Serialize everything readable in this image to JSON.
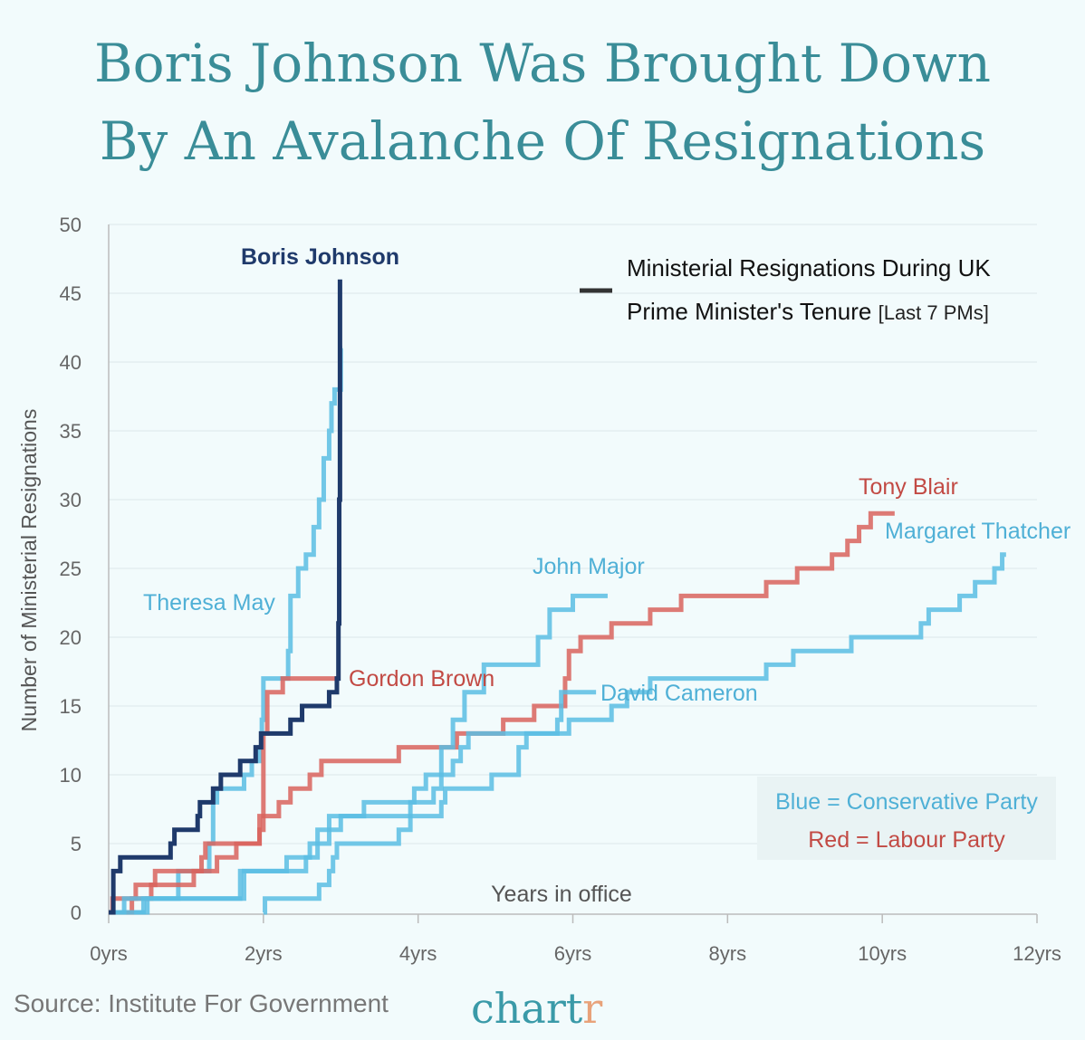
{
  "title_lines": [
    "Boris Johnson Was Brought Down",
    "By An Avalanche Of Resignations"
  ],
  "source": "Source: Institute For Government",
  "brand": {
    "main": "chart",
    "accent": "r"
  },
  "colors": {
    "title": "#3a8d98",
    "conservative": "#5bbde3",
    "labour": "#d9635d",
    "johnson": "#1f3a6b",
    "brand_accent": "#e8a27a",
    "background": "#f2fbfc"
  },
  "chart_data": {
    "type": "line",
    "step": true,
    "xlabel": "Years in office",
    "ylabel": "Number of Ministerial Resignations",
    "xlim": [
      0,
      12
    ],
    "ylim": [
      0,
      50
    ],
    "x_ticks": [
      0,
      2,
      4,
      6,
      8,
      10,
      12
    ],
    "x_tick_labels": [
      "0yrs",
      "2yrs",
      "4yrs",
      "6yrs",
      "8yrs",
      "10yrs",
      "12yrs"
    ],
    "y_ticks": [
      0,
      5,
      10,
      15,
      20,
      25,
      30,
      35,
      40,
      45,
      50
    ],
    "y_tick_labels": [
      "0",
      "5",
      "10",
      "15",
      "20",
      "25",
      "30",
      "35",
      "40",
      "45",
      "50"
    ],
    "grid": "horizontal",
    "legend": {
      "line1": "Ministerial Resignations During UK",
      "line2": "Prime Minister's Tenure",
      "note": "[Last 7 PMs]",
      "placement": "top-right"
    },
    "party_key": {
      "conservative": "Blue = Conservative Party",
      "labour": "Red = Labour Party",
      "placement": "bottom-right"
    },
    "series": [
      {
        "name": "Theresa May",
        "party": "conservative",
        "points": [
          [
            0,
            0
          ],
          [
            0.5,
            1
          ],
          [
            0.9,
            3
          ],
          [
            1.3,
            5
          ],
          [
            1.35,
            8
          ],
          [
            1.4,
            9
          ],
          [
            1.75,
            10
          ],
          [
            1.85,
            11
          ],
          [
            1.95,
            12
          ],
          [
            1.98,
            14
          ],
          [
            2.0,
            17
          ],
          [
            2.32,
            19
          ],
          [
            2.35,
            23
          ],
          [
            2.45,
            25
          ],
          [
            2.55,
            26
          ],
          [
            2.65,
            28
          ],
          [
            2.72,
            30
          ],
          [
            2.78,
            33
          ],
          [
            2.85,
            35
          ],
          [
            2.88,
            37
          ],
          [
            2.92,
            38
          ],
          [
            3.0,
            41
          ]
        ],
        "end": 3.02
      },
      {
        "name": "Gordon Brown",
        "party": "labour",
        "points": [
          [
            0,
            0
          ],
          [
            0.3,
            1
          ],
          [
            0.35,
            2
          ],
          [
            0.6,
            3
          ],
          [
            1.2,
            4
          ],
          [
            1.25,
            5
          ],
          [
            1.95,
            7
          ],
          [
            2.0,
            13
          ],
          [
            2.05,
            16
          ],
          [
            2.25,
            17
          ]
        ],
        "end": 2.95
      },
      {
        "name": "Tony Blair",
        "party": "labour",
        "points": [
          [
            0,
            0
          ],
          [
            0.05,
            1
          ],
          [
            0.55,
            2
          ],
          [
            1.1,
            3
          ],
          [
            1.4,
            4
          ],
          [
            1.65,
            5
          ],
          [
            1.95,
            6
          ],
          [
            2.0,
            7
          ],
          [
            2.2,
            8
          ],
          [
            2.35,
            9
          ],
          [
            2.6,
            10
          ],
          [
            2.75,
            11
          ],
          [
            3.75,
            12
          ],
          [
            4.5,
            13
          ],
          [
            5.1,
            14
          ],
          [
            5.5,
            15
          ],
          [
            5.9,
            17
          ],
          [
            5.95,
            19
          ],
          [
            6.1,
            20
          ],
          [
            6.5,
            21
          ],
          [
            7.0,
            22
          ],
          [
            7.4,
            23
          ],
          [
            8.5,
            24
          ],
          [
            8.9,
            25
          ],
          [
            9.35,
            26
          ],
          [
            9.55,
            27
          ],
          [
            9.7,
            28
          ],
          [
            9.85,
            29
          ]
        ],
        "end": 10.16
      },
      {
        "name": "John Major",
        "party": "conservative",
        "points": [
          [
            0,
            0
          ],
          [
            0.2,
            1
          ],
          [
            1.7,
            3
          ],
          [
            2.3,
            4
          ],
          [
            2.6,
            5
          ],
          [
            2.85,
            7
          ],
          [
            3.3,
            8
          ],
          [
            3.95,
            9
          ],
          [
            4.1,
            10
          ],
          [
            4.3,
            12
          ],
          [
            4.45,
            14
          ],
          [
            4.6,
            16
          ],
          [
            4.85,
            18
          ],
          [
            5.55,
            20
          ],
          [
            5.7,
            22
          ],
          [
            6.0,
            23
          ]
        ],
        "end": 6.45
      },
      {
        "name": "David Cameron",
        "party": "conservative",
        "points": [
          [
            0,
            0
          ],
          [
            0.45,
            1
          ],
          [
            1.75,
            3
          ],
          [
            2.55,
            4
          ],
          [
            2.7,
            6
          ],
          [
            3.0,
            7
          ],
          [
            3.9,
            8
          ],
          [
            4.2,
            9
          ],
          [
            4.3,
            10
          ],
          [
            4.45,
            11
          ],
          [
            4.55,
            12
          ],
          [
            4.65,
            13
          ],
          [
            5.8,
            14
          ],
          [
            5.85,
            16
          ]
        ],
        "end": 6.3
      },
      {
        "name": "Margaret Thatcher",
        "party": "conservative",
        "points": [
          [
            2.0,
            0
          ],
          [
            2.02,
            1
          ],
          [
            2.72,
            2
          ],
          [
            2.85,
            3
          ],
          [
            2.9,
            4
          ],
          [
            2.95,
            5
          ],
          [
            3.75,
            6
          ],
          [
            3.9,
            7
          ],
          [
            4.3,
            8
          ],
          [
            4.35,
            9
          ],
          [
            4.95,
            10
          ],
          [
            5.3,
            12
          ],
          [
            5.4,
            13
          ],
          [
            5.95,
            14
          ],
          [
            6.5,
            15
          ],
          [
            6.7,
            16
          ],
          [
            7.0,
            17
          ],
          [
            8.5,
            18
          ],
          [
            8.85,
            19
          ],
          [
            9.6,
            20
          ],
          [
            10.5,
            21
          ],
          [
            10.6,
            22
          ],
          [
            11.0,
            23
          ],
          [
            11.2,
            24
          ],
          [
            11.45,
            25
          ],
          [
            11.55,
            26
          ]
        ],
        "end": 11.6
      },
      {
        "name": "Boris Johnson",
        "party": "johnson",
        "points": [
          [
            0,
            0
          ],
          [
            0.06,
            3
          ],
          [
            0.15,
            4
          ],
          [
            0.8,
            5
          ],
          [
            0.85,
            6
          ],
          [
            1.15,
            7
          ],
          [
            1.18,
            8
          ],
          [
            1.35,
            9
          ],
          [
            1.45,
            10
          ],
          [
            1.7,
            11
          ],
          [
            1.9,
            12
          ],
          [
            1.97,
            13
          ],
          [
            2.35,
            14
          ],
          [
            2.5,
            15
          ],
          [
            2.85,
            16
          ],
          [
            2.95,
            17
          ],
          [
            2.97,
            21
          ],
          [
            2.98,
            30
          ],
          [
            2.99,
            46
          ]
        ],
        "end": 2.99
      }
    ]
  }
}
